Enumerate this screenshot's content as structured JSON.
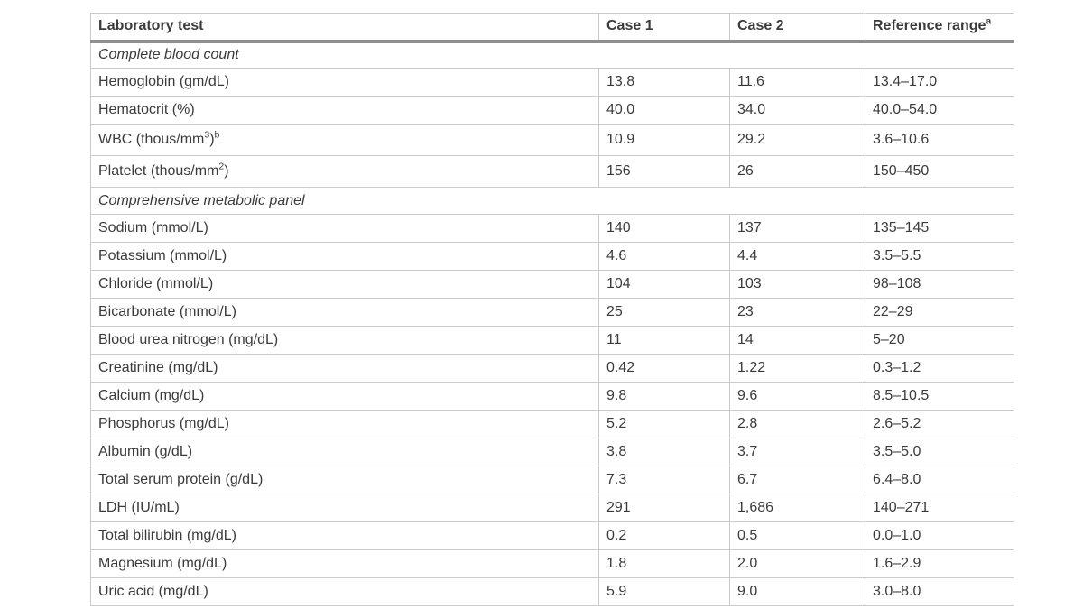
{
  "theme": {
    "page_bg": "#ffffff",
    "text_color": "#3b3b3b",
    "border_light": "#cbcbcb",
    "header_rule": "#8e8e8e"
  },
  "table": {
    "columns": [
      {
        "label": "Laboratory test",
        "sup": ""
      },
      {
        "label": "Case 1",
        "sup": ""
      },
      {
        "label": "Case 2",
        "sup": ""
      },
      {
        "label": "Reference range",
        "sup": "a"
      }
    ],
    "rows": [
      {
        "type": "section",
        "label": "Complete blood count"
      },
      {
        "type": "data",
        "label": "Hemoglobin (gm/dL)",
        "case1": "13.8",
        "case2": "11.6",
        "ref": "13.4–17.0"
      },
      {
        "type": "data",
        "label": "Hematocrit (%)",
        "case1": "40.0",
        "case2": "34.0",
        "ref": "40.0–54.0"
      },
      {
        "type": "data",
        "label_parts": [
          {
            "t": "WBC (thous/mm"
          },
          {
            "t": "3",
            "sup": true
          },
          {
            "t": ")"
          },
          {
            "t": "b",
            "sup": true
          }
        ],
        "case1": "10.9",
        "case2": "29.2",
        "ref": "3.6–10.6"
      },
      {
        "type": "data",
        "label_parts": [
          {
            "t": "Platelet (thous/mm"
          },
          {
            "t": "2",
            "sup": true
          },
          {
            "t": ")"
          }
        ],
        "case1": "156",
        "case2": "26",
        "ref": "150–450"
      },
      {
        "type": "section",
        "label": "Comprehensive metabolic panel"
      },
      {
        "type": "data",
        "label": "Sodium (mmol/L)",
        "case1": "140",
        "case2": "137",
        "ref": "135–145"
      },
      {
        "type": "data",
        "label": "Potassium (mmol/L)",
        "case1": "4.6",
        "case2": "4.4",
        "ref": "3.5–5.5"
      },
      {
        "type": "data",
        "label": "Chloride (mmol/L)",
        "case1": "104",
        "case2": "103",
        "ref": "98–108"
      },
      {
        "type": "data",
        "label": "Bicarbonate (mmol/L)",
        "case1": "25",
        "case2": "23",
        "ref": "22–29"
      },
      {
        "type": "data",
        "label": "Blood urea nitrogen (mg/dL)",
        "case1": "11",
        "case2": "14",
        "ref": "5–20"
      },
      {
        "type": "data",
        "label": "Creatinine (mg/dL)",
        "case1": "0.42",
        "case2": "1.22",
        "ref": "0.3–1.2"
      },
      {
        "type": "data",
        "label": "Calcium (mg/dL)",
        "case1": "9.8",
        "case2": "9.6",
        "ref": "8.5–10.5"
      },
      {
        "type": "data",
        "label": "Phosphorus (mg/dL)",
        "case1": "5.2",
        "case2": "2.8",
        "ref": "2.6–5.2"
      },
      {
        "type": "data",
        "label": "Albumin (g/dL)",
        "case1": "3.8",
        "case2": "3.7",
        "ref": "3.5–5.0"
      },
      {
        "type": "data",
        "label": "Total serum protein (g/dL)",
        "case1": "7.3",
        "case2": "6.7",
        "ref": "6.4–8.0"
      },
      {
        "type": "data",
        "label": "LDH (IU/mL)",
        "case1": "291",
        "case2": "1,686",
        "ref": "140–271"
      },
      {
        "type": "data",
        "label": "Total bilirubin (mg/dL)",
        "case1": "0.2",
        "case2": "0.5",
        "ref": "0.0–1.0"
      },
      {
        "type": "data",
        "label": "Magnesium (mg/dL)",
        "case1": "1.8",
        "case2": "2.0",
        "ref": "1.6–2.9"
      },
      {
        "type": "data",
        "label": "Uric acid (mg/dL)",
        "case1": "5.9",
        "case2": "9.0",
        "ref": "3.0–8.0"
      }
    ]
  }
}
